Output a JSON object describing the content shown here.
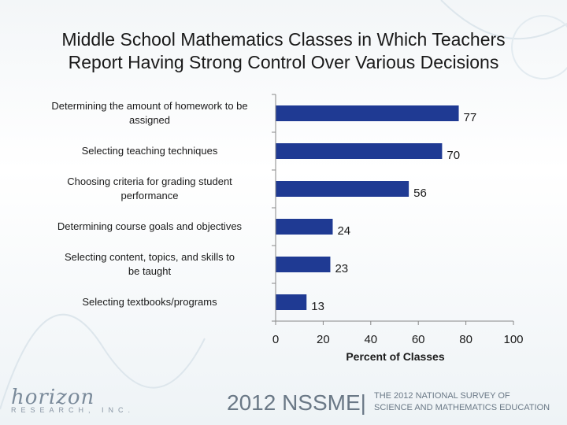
{
  "slide": {
    "title_line1": "Middle School Mathematics Classes in Which Teachers",
    "title_line2": "Report Having Strong Control Over Various Decisions",
    "logo_text": "horizon",
    "logo_sub": "RESEARCH, INC.",
    "event_label": "2012 NSSME|",
    "survey_line1": "THE 2012 NATIONAL SURVEY OF",
    "survey_line2": "SCIENCE AND MATHEMATICS EDUCATION"
  },
  "chart_data": {
    "type": "bar",
    "orientation": "horizontal",
    "categories": [
      "Determining the amount of homework to be assigned",
      "Selecting teaching techniques",
      "Choosing criteria for grading student performance",
      "Determining course goals and objectives",
      "Selecting content, topics, and skills to be taught",
      "Selecting textbooks/programs"
    ],
    "values": [
      77,
      70,
      56,
      24,
      23,
      13
    ],
    "xlabel": "Percent of Classes",
    "xlim": [
      0,
      100
    ],
    "xticks": [
      0,
      20,
      40,
      60,
      80,
      100
    ],
    "bar_color": "#1f3a93",
    "grid": false,
    "legend": "none"
  }
}
